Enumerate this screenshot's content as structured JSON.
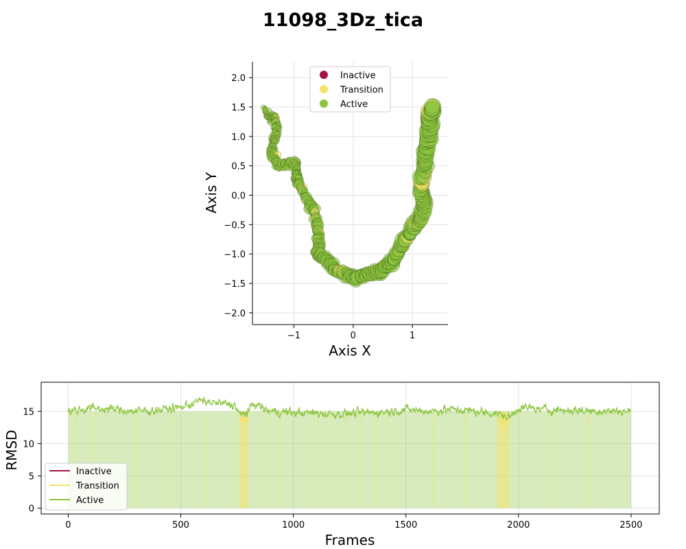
{
  "figure": {
    "title": "11098_3Dz_tica"
  },
  "colors": {
    "inactive": "#a50f45",
    "transition": "#f5e16a",
    "active": "#8cc63f",
    "grid": "#e3e3e3",
    "axis": "#000000"
  },
  "chart_data": [
    {
      "type": "scatter",
      "xlabel": "Axis X",
      "ylabel": "Axis Y",
      "xlim": [
        -1.7,
        1.6
      ],
      "ylim": [
        -2.2,
        2.27
      ],
      "xticks": [
        -1,
        0,
        1
      ],
      "yticks": [
        -2.0,
        -1.5,
        -1.0,
        -0.5,
        0.0,
        0.5,
        1.0,
        1.5,
        2.0
      ],
      "grid": true,
      "legend": {
        "placement": "top-center",
        "entries": [
          "Inactive",
          "Transition",
          "Active"
        ]
      },
      "series": [
        {
          "name": "Active",
          "path": [
            [
              -1.5,
              1.48
            ],
            [
              -1.42,
              1.32
            ],
            [
              -1.33,
              1.35
            ],
            [
              -1.28,
              1.2
            ],
            [
              -1.3,
              1.05
            ],
            [
              -1.35,
              0.9
            ],
            [
              -1.38,
              0.72
            ],
            [
              -1.3,
              0.6
            ],
            [
              -1.25,
              0.5
            ],
            [
              -1.1,
              0.55
            ],
            [
              -0.98,
              0.55
            ],
            [
              -0.95,
              0.32
            ],
            [
              -0.93,
              0.22
            ],
            [
              -0.75,
              -0.1
            ],
            [
              -0.65,
              -0.3
            ],
            [
              -0.6,
              -0.55
            ],
            [
              -0.58,
              -0.8
            ],
            [
              -0.6,
              -1.0
            ],
            [
              -0.5,
              -1.05
            ],
            [
              -0.38,
              -1.15
            ],
            [
              -0.3,
              -1.28
            ],
            [
              -0.1,
              -1.35
            ],
            [
              0.05,
              -1.42
            ],
            [
              0.2,
              -1.35
            ],
            [
              0.4,
              -1.3
            ],
            [
              0.55,
              -1.22
            ],
            [
              0.7,
              -1.08
            ],
            [
              0.85,
              -0.8
            ],
            [
              1.0,
              -0.55
            ],
            [
              1.15,
              -0.35
            ],
            [
              1.2,
              -0.1
            ],
            [
              1.15,
              0.15
            ],
            [
              1.2,
              0.5
            ],
            [
              1.25,
              0.8
            ],
            [
              1.28,
              1.1
            ],
            [
              1.3,
              1.35
            ],
            [
              1.35,
              1.5
            ]
          ]
        }
      ]
    },
    {
      "type": "area",
      "xlabel": "Frames",
      "ylabel": "RMSD",
      "xlim": [
        -120,
        2625
      ],
      "ylim": [
        -0.9,
        19.5
      ],
      "xticks": [
        0,
        500,
        1000,
        1500,
        2000,
        2500
      ],
      "yticks": [
        0,
        5,
        10,
        15
      ],
      "grid": true,
      "legend": {
        "placement": "lower-left",
        "entries": [
          "Inactive",
          "Transition",
          "Active"
        ]
      },
      "x_range": [
        0,
        2500
      ],
      "baseline": [
        [
          0,
          15.0
        ],
        [
          100,
          15.5
        ],
        [
          200,
          15.3
        ],
        [
          300,
          15.0
        ],
        [
          400,
          15.2
        ],
        [
          500,
          15.6
        ],
        [
          580,
          16.6
        ],
        [
          650,
          16.3
        ],
        [
          740,
          16.0
        ],
        [
          765,
          14.3
        ],
        [
          800,
          15.0
        ],
        [
          830,
          16.3
        ],
        [
          880,
          15.1
        ],
        [
          1000,
          14.8
        ],
        [
          1200,
          14.6
        ],
        [
          1400,
          14.9
        ],
        [
          1500,
          15.3
        ],
        [
          1600,
          15.0
        ],
        [
          1700,
          15.3
        ],
        [
          1800,
          15.0
        ],
        [
          1900,
          14.7
        ],
        [
          1960,
          14.0
        ],
        [
          2000,
          15.6
        ],
        [
          2100,
          15.3
        ],
        [
          2300,
          15.1
        ],
        [
          2500,
          15.0
        ]
      ],
      "transition_spans": [
        [
          760,
          800
        ],
        [
          1905,
          1960
        ],
        [
          30,
          34
        ],
        [
          120,
          123
        ],
        [
          300,
          302
        ],
        [
          455,
          458
        ],
        [
          615,
          617
        ],
        [
          880,
          884
        ],
        [
          940,
          943
        ],
        [
          1090,
          1093
        ],
        [
          1160,
          1163
        ],
        [
          1230,
          1233
        ],
        [
          1300,
          1304
        ],
        [
          1370,
          1372
        ],
        [
          1420,
          1423
        ],
        [
          1620,
          1624
        ],
        [
          1760,
          1763
        ],
        [
          2160,
          2163
        ],
        [
          2310,
          2314
        ],
        [
          2395,
          2397
        ]
      ]
    }
  ]
}
